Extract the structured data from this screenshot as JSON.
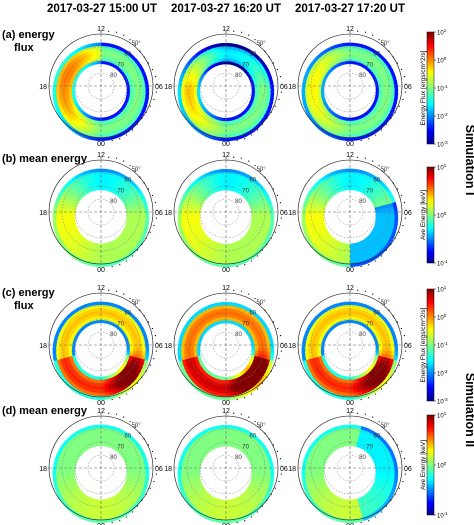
{
  "headers": [
    "2017-03-27 15:00 UT",
    "2017-03-27 16:20 UT",
    "2017-03-27 17:20 UT"
  ],
  "rows": [
    {
      "label_line1": "(a) energy",
      "label_line2": "flux",
      "quantity": "flux"
    },
    {
      "label_line1": "(b) mean energy",
      "label_line2": "",
      "quantity": "energy"
    },
    {
      "label_line1": "(c) energy",
      "label_line2": "flux",
      "quantity": "flux"
    },
    {
      "label_line1": "(d) mean energy",
      "label_line2": "",
      "quantity": "energy"
    }
  ],
  "simulations": [
    "Simulation I",
    "Simulation II"
  ],
  "mlt_labels": {
    "top": "12",
    "bottom": "00",
    "left": "18",
    "right": "06"
  },
  "latitude_labels": [
    "50",
    "60",
    "70",
    "80"
  ],
  "colorbars": {
    "flux": {
      "label": "Energy Flux [ergs/cm^2/s]",
      "tick_labels": [
        "10^1",
        "10^0",
        "10^-1",
        "10^-2",
        "10^-3"
      ],
      "range": [
        0.001,
        10
      ],
      "scale": "log"
    },
    "energy": {
      "label": "Ave Energy [keV]",
      "tick_labels": [
        "10^1",
        "10^0",
        "10^-1"
      ],
      "range": [
        0.1,
        10
      ],
      "scale": "log"
    }
  },
  "chart_data": {
    "type": "heatmap",
    "projection": "polar MLT-latitude dial",
    "grid": true,
    "panels_rows": 4,
    "panels_cols": 3,
    "note_values": "auroral oval patterns shown as color only; values estimated qualitatively"
  },
  "colors": {
    "jet": [
      "#00008f",
      "#0000ff",
      "#0080ff",
      "#00ffff",
      "#80ff80",
      "#ffff00",
      "#ff8000",
      "#ff0000",
      "#800000"
    ]
  }
}
